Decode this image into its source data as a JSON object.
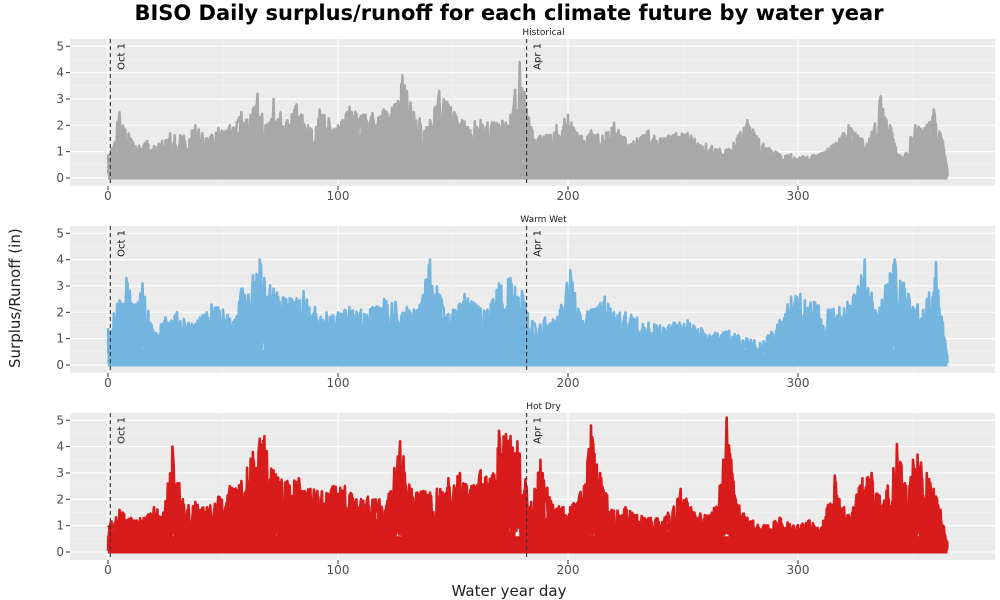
{
  "chart_data": {
    "type": "line",
    "title": "BISO Daily surplus/runoff for each climate future by water year",
    "xlabel": "Water year day",
    "ylabel": "Surplus/Runoff (in)",
    "xlim": [
      0,
      365
    ],
    "ylim": [
      0,
      5.2
    ],
    "xticks": [
      0,
      100,
      200,
      300
    ],
    "yticks": [
      0,
      1,
      2,
      3,
      4,
      5
    ],
    "grid": true,
    "vlines": [
      {
        "x": 1,
        "label": "Oct 1"
      },
      {
        "x": 182,
        "label": "Apr 1"
      }
    ],
    "panels": [
      {
        "name": "Historical",
        "color": "#A8A8A8",
        "peaks": [
          [
            0,
            0.9
          ],
          [
            5,
            2.5
          ],
          [
            12,
            1.2
          ],
          [
            17,
            1.4
          ],
          [
            22,
            1.3
          ],
          [
            27,
            1.7
          ],
          [
            33,
            1.6
          ],
          [
            38,
            2.0
          ],
          [
            43,
            1.5
          ],
          [
            48,
            1.9
          ],
          [
            53,
            2.0
          ],
          [
            58,
            2.5
          ],
          [
            60,
            2.2
          ],
          [
            65,
            3.2
          ],
          [
            69,
            2.0
          ],
          [
            72,
            3.0
          ],
          [
            78,
            2.2
          ],
          [
            82,
            2.8
          ],
          [
            87,
            2.0
          ],
          [
            92,
            2.6
          ],
          [
            100,
            2.0
          ],
          [
            105,
            2.7
          ],
          [
            112,
            2.4
          ],
          [
            120,
            2.6
          ],
          [
            125,
            2.8
          ],
          [
            128,
            3.9
          ],
          [
            133,
            2.5
          ],
          [
            140,
            2.2
          ],
          [
            144,
            3.3
          ],
          [
            149,
            2.7
          ],
          [
            154,
            2.2
          ],
          [
            162,
            2.2
          ],
          [
            168,
            2.1
          ],
          [
            175,
            2.4
          ],
          [
            179,
            4.4
          ],
          [
            183,
            2.3
          ],
          [
            188,
            1.6
          ],
          [
            195,
            2.0
          ],
          [
            200,
            2.4
          ],
          [
            205,
            1.6
          ],
          [
            210,
            1.8
          ],
          [
            215,
            1.6
          ],
          [
            220,
            2.1
          ],
          [
            225,
            1.5
          ],
          [
            230,
            1.5
          ],
          [
            235,
            1.8
          ],
          [
            240,
            1.5
          ],
          [
            247,
            1.7
          ],
          [
            252,
            1.7
          ],
          [
            260,
            1.3
          ],
          [
            270,
            1.1
          ],
          [
            278,
            2.2
          ],
          [
            285,
            1.3
          ],
          [
            290,
            1.0
          ],
          [
            297,
            0.9
          ],
          [
            304,
            0.8
          ],
          [
            313,
            1.1
          ],
          [
            322,
            2.0
          ],
          [
            330,
            1.3
          ],
          [
            336,
            3.1
          ],
          [
            340,
            2.0
          ],
          [
            345,
            0.8
          ],
          [
            351,
            2.0
          ],
          [
            355,
            1.9
          ],
          [
            359,
            2.6
          ],
          [
            363,
            1.4
          ],
          [
            365,
            0.3
          ]
        ]
      },
      {
        "name": "Warm Wet",
        "color": "#74B5E0",
        "peaks": [
          [
            0,
            1.4
          ],
          [
            8,
            3.3
          ],
          [
            12,
            2.3
          ],
          [
            15,
            3.1
          ],
          [
            20,
            1.2
          ],
          [
            25,
            1.8
          ],
          [
            30,
            2.0
          ],
          [
            35,
            1.6
          ],
          [
            40,
            1.8
          ],
          [
            45,
            2.3
          ],
          [
            50,
            2.1
          ],
          [
            55,
            1.7
          ],
          [
            58,
            2.9
          ],
          [
            63,
            3.4
          ],
          [
            66,
            4.0
          ],
          [
            68,
            3.3
          ],
          [
            72,
            2.9
          ],
          [
            80,
            2.5
          ],
          [
            85,
            2.8
          ],
          [
            90,
            2.2
          ],
          [
            95,
            2.0
          ],
          [
            100,
            2.0
          ],
          [
            105,
            2.2
          ],
          [
            110,
            2.1
          ],
          [
            115,
            2.2
          ],
          [
            120,
            2.5
          ],
          [
            125,
            2.4
          ],
          [
            130,
            2.2
          ],
          [
            135,
            2.1
          ],
          [
            140,
            4.0
          ],
          [
            145,
            2.5
          ],
          [
            150,
            2.1
          ],
          [
            155,
            2.7
          ],
          [
            160,
            2.3
          ],
          [
            165,
            2.1
          ],
          [
            170,
            3.1
          ],
          [
            175,
            3.3
          ],
          [
            180,
            2.8
          ],
          [
            185,
            1.6
          ],
          [
            190,
            1.8
          ],
          [
            195,
            1.7
          ],
          [
            201,
            3.6
          ],
          [
            205,
            2.0
          ],
          [
            210,
            2.1
          ],
          [
            216,
            2.6
          ],
          [
            220,
            2.0
          ],
          [
            225,
            2.0
          ],
          [
            230,
            1.8
          ],
          [
            235,
            1.6
          ],
          [
            240,
            1.5
          ],
          [
            246,
            1.6
          ],
          [
            252,
            1.7
          ],
          [
            258,
            1.4
          ],
          [
            265,
            1.2
          ],
          [
            270,
            1.3
          ],
          [
            278,
            1.0
          ],
          [
            285,
            0.9
          ],
          [
            292,
            1.7
          ],
          [
            297,
            2.6
          ],
          [
            301,
            2.7
          ],
          [
            307,
            2.4
          ],
          [
            313,
            2.1
          ],
          [
            318,
            2.2
          ],
          [
            324,
            2.6
          ],
          [
            329,
            4.0
          ],
          [
            334,
            2.0
          ],
          [
            338,
            3.0
          ],
          [
            342,
            4.0
          ],
          [
            348,
            2.7
          ],
          [
            352,
            2.3
          ],
          [
            356,
            2.5
          ],
          [
            360,
            3.9
          ],
          [
            363,
            1.6
          ],
          [
            365,
            0.4
          ]
        ]
      },
      {
        "name": "Hot Dry",
        "color": "#D81B1B",
        "peaks": [
          [
            0,
            1.0
          ],
          [
            5,
            1.6
          ],
          [
            10,
            1.3
          ],
          [
            16,
            1.3
          ],
          [
            20,
            1.7
          ],
          [
            24,
            1.5
          ],
          [
            28,
            4.0
          ],
          [
            33,
            1.8
          ],
          [
            38,
            1.9
          ],
          [
            43,
            1.7
          ],
          [
            48,
            2.1
          ],
          [
            53,
            2.5
          ],
          [
            58,
            2.7
          ],
          [
            63,
            3.8
          ],
          [
            66,
            4.3
          ],
          [
            68,
            4.4
          ],
          [
            72,
            3.1
          ],
          [
            78,
            2.7
          ],
          [
            83,
            2.8
          ],
          [
            88,
            2.4
          ],
          [
            93,
            2.3
          ],
          [
            98,
            2.5
          ],
          [
            103,
            2.5
          ],
          [
            108,
            2.0
          ],
          [
            113,
            2.1
          ],
          [
            118,
            2.0
          ],
          [
            122,
            2.2
          ],
          [
            127,
            4.2
          ],
          [
            132,
            2.4
          ],
          [
            138,
            2.3
          ],
          [
            143,
            2.4
          ],
          [
            148,
            2.8
          ],
          [
            153,
            3.0
          ],
          [
            158,
            2.5
          ],
          [
            162,
            3.1
          ],
          [
            167,
            2.9
          ],
          [
            170,
            4.6
          ],
          [
            175,
            4.4
          ],
          [
            178,
            4.2
          ],
          [
            184,
            1.9
          ],
          [
            188,
            3.5
          ],
          [
            193,
            1.8
          ],
          [
            198,
            1.7
          ],
          [
            202,
            1.8
          ],
          [
            207,
            2.5
          ],
          [
            210,
            4.8
          ],
          [
            214,
            3.0
          ],
          [
            219,
            1.6
          ],
          [
            225,
            1.7
          ],
          [
            230,
            1.4
          ],
          [
            236,
            1.3
          ],
          [
            242,
            1.3
          ],
          [
            249,
            2.4
          ],
          [
            255,
            1.5
          ],
          [
            262,
            1.4
          ],
          [
            266,
            2.5
          ],
          [
            269,
            5.1
          ],
          [
            273,
            2.0
          ],
          [
            278,
            1.3
          ],
          [
            285,
            1.0
          ],
          [
            292,
            1.3
          ],
          [
            298,
            1.0
          ],
          [
            305,
            1.2
          ],
          [
            310,
            0.9
          ],
          [
            316,
            2.9
          ],
          [
            322,
            1.4
          ],
          [
            328,
            2.8
          ],
          [
            332,
            3.0
          ],
          [
            337,
            1.8
          ],
          [
            343,
            4.1
          ],
          [
            347,
            2.5
          ],
          [
            350,
            3.5
          ],
          [
            352,
            3.7
          ],
          [
            356,
            3.0
          ],
          [
            359,
            2.4
          ],
          [
            362,
            1.6
          ],
          [
            365,
            0.4
          ]
        ]
      }
    ]
  }
}
